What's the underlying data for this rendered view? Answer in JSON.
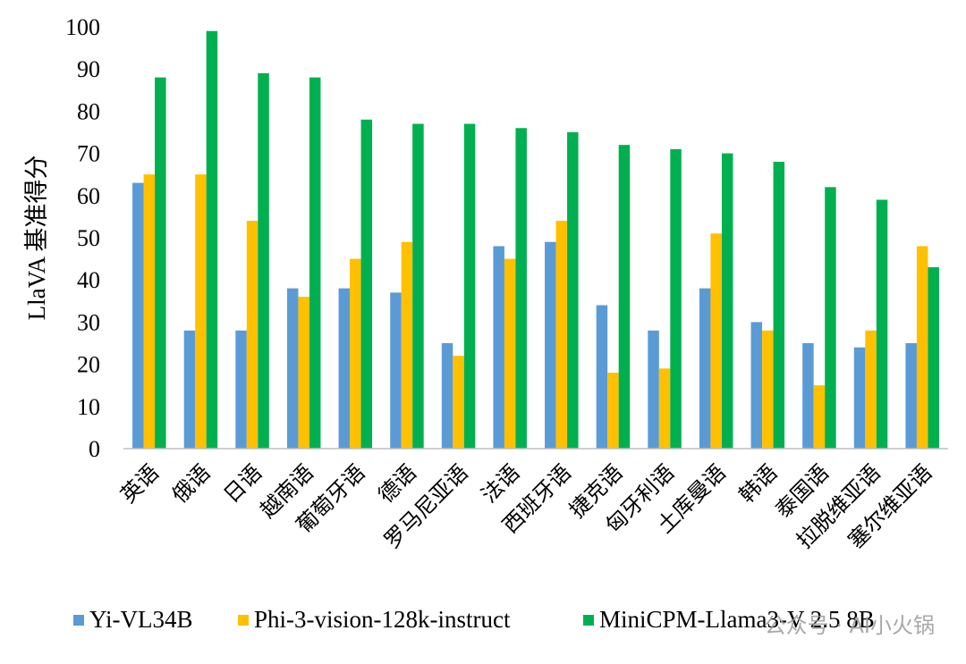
{
  "chart_data": {
    "type": "bar",
    "title": "",
    "xlabel": "",
    "ylabel": "LlaVA 基准得分",
    "ylim": [
      0,
      100
    ],
    "yticks": [
      0,
      10,
      20,
      30,
      40,
      50,
      60,
      70,
      80,
      90,
      100
    ],
    "grid": false,
    "legend_position": "bottom",
    "categories": [
      "英语",
      "俄语",
      "日语",
      "越南语",
      "葡萄牙语",
      "德语",
      "罗马尼亚语",
      "法语",
      "西班牙语",
      "捷克语",
      "匈牙利语",
      "土库曼语",
      "韩语",
      "泰国语",
      "拉脱维亚语",
      "塞尔维亚语"
    ],
    "series": [
      {
        "name": "Yi-VL34B",
        "color": "#5b9bd5",
        "values": [
          63,
          28,
          28,
          38,
          38,
          37,
          25,
          48,
          49,
          34,
          28,
          38,
          30,
          25,
          24,
          25
        ]
      },
      {
        "name": "Phi-3-vision-128k-instruct",
        "color": "#ffc000",
        "values": [
          65,
          65,
          54,
          36,
          45,
          49,
          22,
          45,
          54,
          18,
          19,
          51,
          28,
          15,
          28,
          48
        ]
      },
      {
        "name": "MiniCPM-Llama3-V 2.5 8B",
        "color": "#00b050",
        "values": [
          88,
          99,
          89,
          88,
          78,
          77,
          77,
          76,
          75,
          72,
          71,
          70,
          68,
          62,
          59,
          43
        ]
      }
    ]
  },
  "watermark": {
    "text": "公众号 · AI小火锅"
  }
}
